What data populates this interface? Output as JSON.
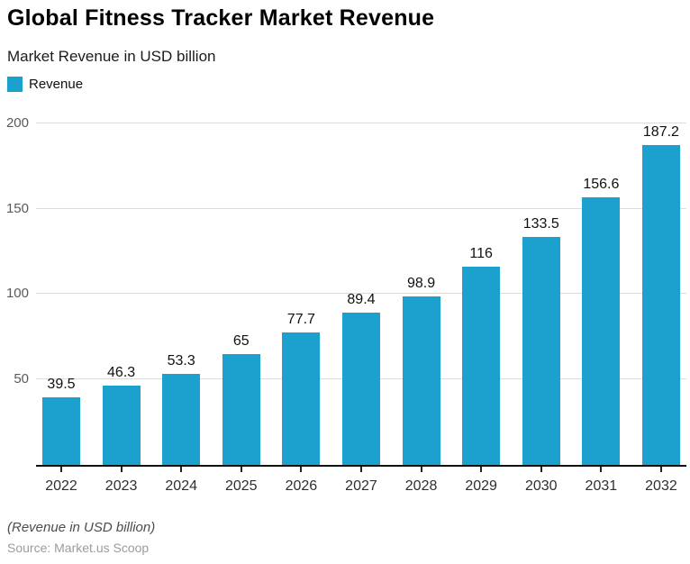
{
  "header": {
    "title": "Global Fitness Tracker Market Revenue",
    "subtitle": "Market Revenue in USD billion"
  },
  "legend": {
    "label": "Revenue",
    "color": "#1CA1CE"
  },
  "chart_data": {
    "type": "bar",
    "title": "Global Fitness Tracker Market Revenue",
    "subtitle": "Market Revenue in USD billion",
    "series_name": "Revenue",
    "categories": [
      "2022",
      "2023",
      "2024",
      "2025",
      "2026",
      "2027",
      "2028",
      "2029",
      "2030",
      "2031",
      "2032"
    ],
    "values": [
      39.5,
      46.3,
      53.3,
      65,
      77.7,
      89.4,
      98.9,
      116,
      133.5,
      156.6,
      187.2
    ],
    "value_labels": [
      "39.5",
      "46.3",
      "53.3",
      "65",
      "77.7",
      "89.4",
      "98.9",
      "116",
      "133.5",
      "156.6",
      "187.2"
    ],
    "xlabel": "",
    "ylabel": "",
    "ylim": [
      0,
      200
    ],
    "yticks": [
      50,
      100,
      150,
      200
    ],
    "grid": true,
    "legend_position": "top-left",
    "bar_color": "#1CA1CE"
  },
  "footer": {
    "note": "(Revenue in USD billion)",
    "source": "Source: Market.us Scoop"
  }
}
